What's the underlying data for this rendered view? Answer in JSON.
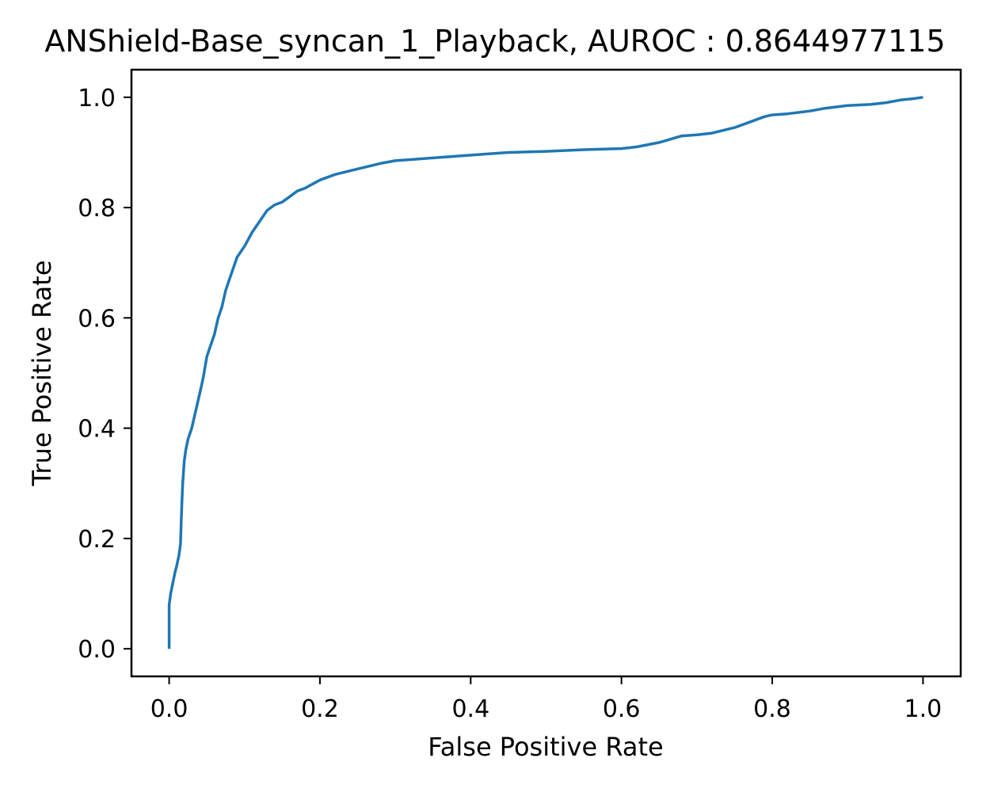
{
  "chart_data": {
    "type": "line",
    "title": "ANShield-Base_syncan_1_Playback, AUROC : 0.8644977115",
    "xlabel": "False Positive Rate",
    "ylabel": "True Positive Rate",
    "xlim": [
      -0.05,
      1.05
    ],
    "ylim": [
      -0.05,
      1.05
    ],
    "x_ticks": [
      "0.0",
      "0.2",
      "0.4",
      "0.6",
      "0.8",
      "1.0"
    ],
    "y_ticks": [
      "0.0",
      "0.2",
      "0.4",
      "0.6",
      "0.8",
      "1.0"
    ],
    "grid": false,
    "legend": "none",
    "series": [
      {
        "color": "#1f77b4",
        "x": [
          0.0,
          0.0,
          0.002,
          0.005,
          0.008,
          0.01,
          0.013,
          0.015,
          0.016,
          0.017,
          0.018,
          0.02,
          0.022,
          0.025,
          0.03,
          0.035,
          0.04,
          0.045,
          0.05,
          0.055,
          0.06,
          0.065,
          0.07,
          0.075,
          0.08,
          0.085,
          0.09,
          0.1,
          0.11,
          0.12,
          0.13,
          0.14,
          0.15,
          0.16,
          0.17,
          0.18,
          0.2,
          0.22,
          0.25,
          0.28,
          0.3,
          0.35,
          0.4,
          0.45,
          0.5,
          0.55,
          0.6,
          0.62,
          0.65,
          0.68,
          0.7,
          0.72,
          0.75,
          0.77,
          0.79,
          0.8,
          0.82,
          0.85,
          0.87,
          0.9,
          0.93,
          0.95,
          0.97,
          0.99,
          1.0
        ],
        "y": [
          0.0,
          0.08,
          0.1,
          0.12,
          0.14,
          0.15,
          0.17,
          0.19,
          0.23,
          0.27,
          0.3,
          0.34,
          0.36,
          0.38,
          0.4,
          0.43,
          0.46,
          0.49,
          0.53,
          0.55,
          0.57,
          0.6,
          0.62,
          0.65,
          0.67,
          0.69,
          0.71,
          0.73,
          0.755,
          0.775,
          0.795,
          0.805,
          0.81,
          0.82,
          0.83,
          0.835,
          0.85,
          0.86,
          0.87,
          0.88,
          0.885,
          0.89,
          0.895,
          0.9,
          0.902,
          0.905,
          0.907,
          0.91,
          0.918,
          0.93,
          0.932,
          0.935,
          0.945,
          0.955,
          0.965,
          0.968,
          0.97,
          0.975,
          0.98,
          0.985,
          0.987,
          0.99,
          0.995,
          0.998,
          1.0
        ]
      }
    ]
  }
}
